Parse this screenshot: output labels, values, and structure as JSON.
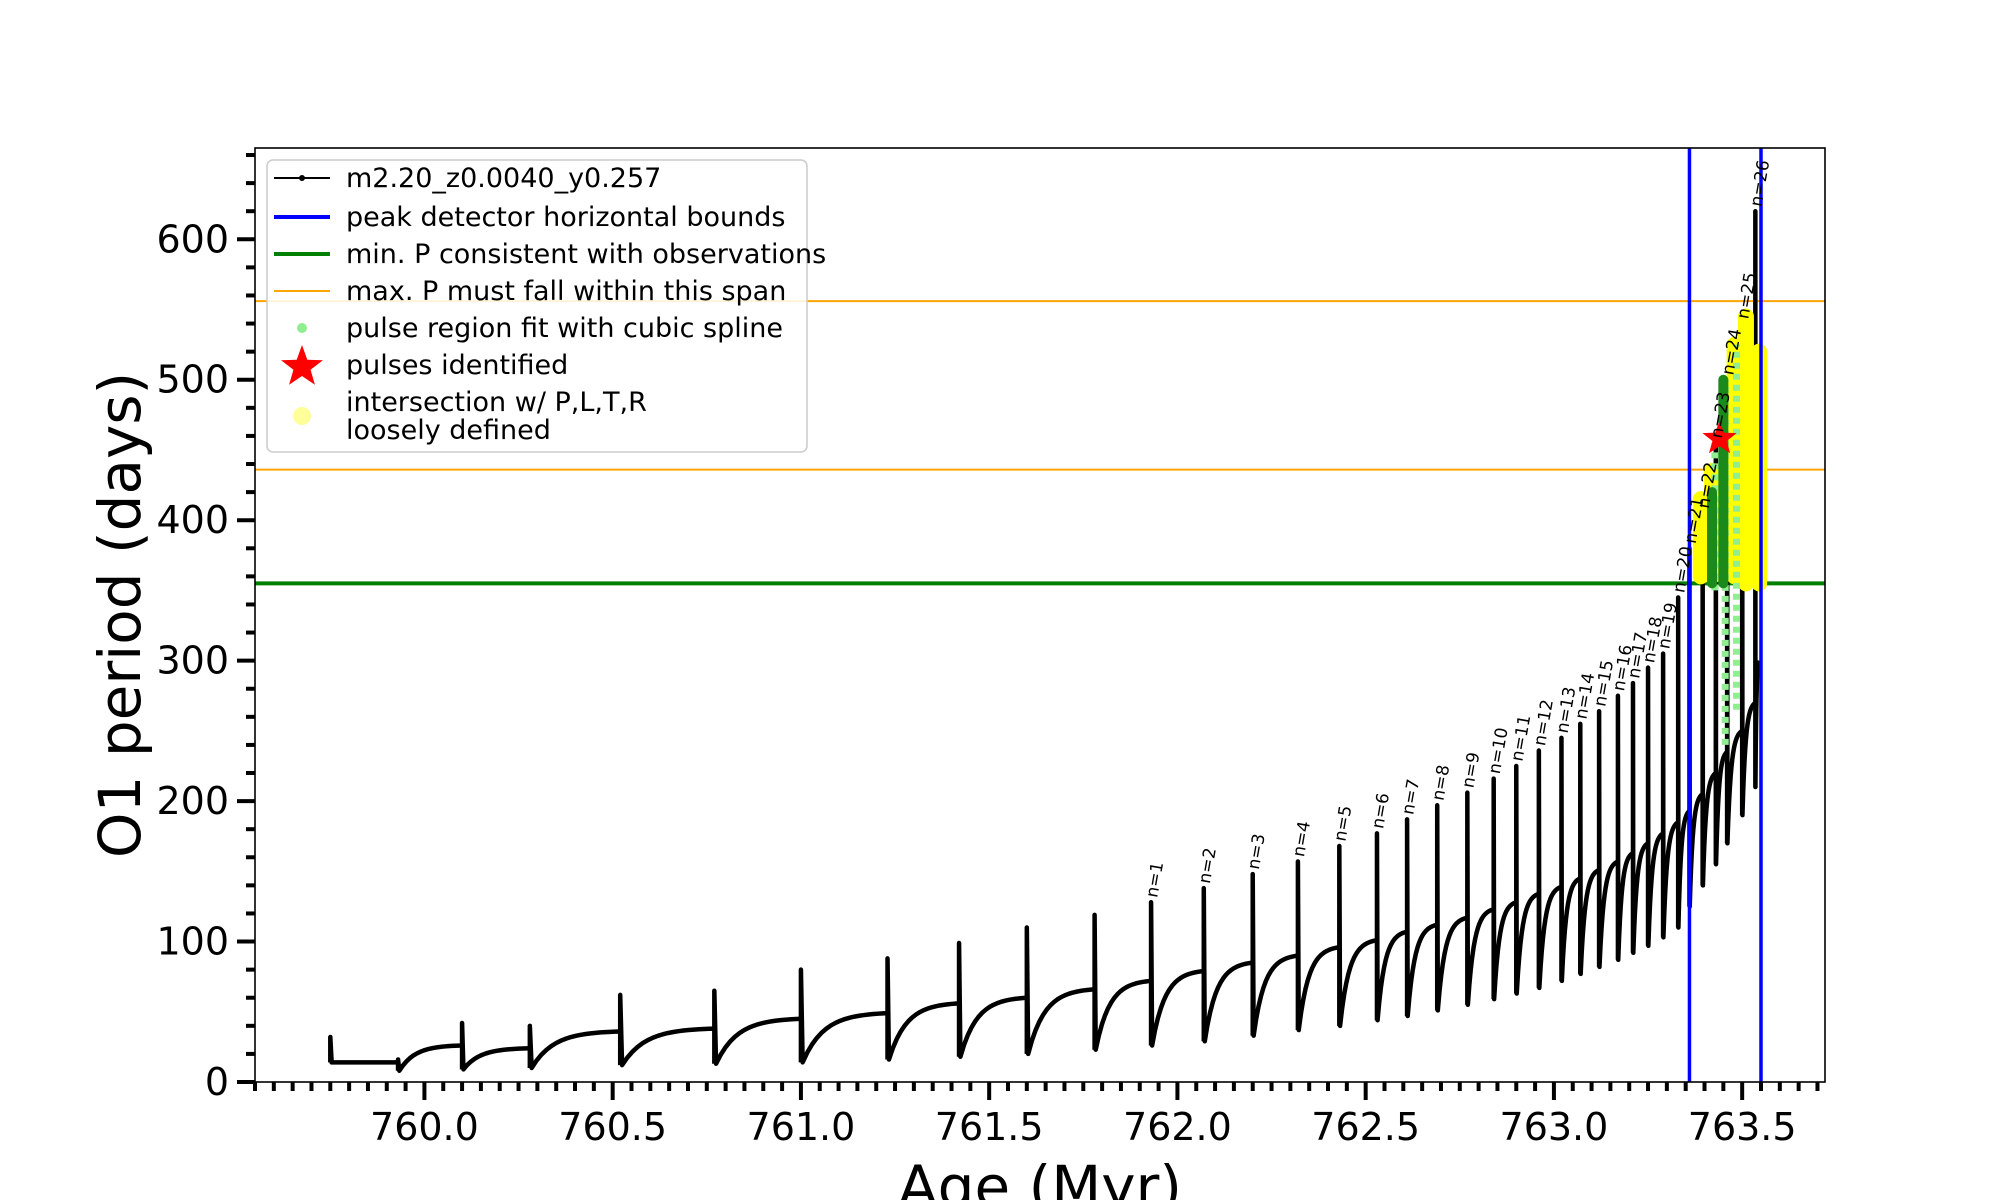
{
  "chart_data": {
    "type": "line",
    "xlabel": "Age (Myr)",
    "ylabel": "O1 period (days)",
    "xlim": [
      759.55,
      763.72
    ],
    "ylim": [
      0,
      665
    ],
    "x_ticks": [
      760.0,
      760.5,
      761.0,
      761.5,
      762.0,
      762.5,
      763.0,
      763.5
    ],
    "x_tick_labels": [
      "760.0",
      "760.5",
      "761.0",
      "761.5",
      "762.0",
      "762.5",
      "763.0",
      "763.5"
    ],
    "y_ticks": [
      0,
      100,
      200,
      300,
      400,
      500,
      600
    ],
    "y_tick_labels": [
      "0",
      "100",
      "200",
      "300",
      "400",
      "500",
      "600"
    ],
    "grid": false,
    "legend_placement": "top-left",
    "legend": [
      {
        "label": "m2.20_z0.0040_y0.257",
        "marker": "line-dot",
        "color": "#000000"
      },
      {
        "label": "peak detector horizontal bounds",
        "marker": "line",
        "color": "#0000ff"
      },
      {
        "label": "min. P consistent with observations",
        "marker": "line",
        "color": "#008000"
      },
      {
        "label": "max. P must fall within this span",
        "marker": "thin-line",
        "color": "#ffa500"
      },
      {
        "label": "pulse region fit with cubic spline",
        "marker": "dot",
        "color": "#90ee90"
      },
      {
        "label": "pulses identified",
        "marker": "star",
        "color": "#ff0000"
      },
      {
        "label": "intersection w/ P,L,T,R",
        "label_line2": "loosely defined",
        "marker": "circle",
        "color": "#ffff99"
      }
    ],
    "vertical_lines": {
      "color": "#0000ff",
      "x": [
        763.36,
        763.55
      ]
    },
    "min_period_line": {
      "color": "#008000",
      "y": 355
    },
    "max_period_span": {
      "color": "#ffa500",
      "y": [
        436,
        556
      ]
    },
    "identified_pulse": {
      "x": 763.44,
      "y": 458,
      "color": "#ff0000"
    },
    "series": [
      {
        "name": "m2.20_z0.0040_y0.257",
        "color": "#000000",
        "pulses": [
          {
            "n": "",
            "x": 759.75,
            "peak": 32,
            "start": 14,
            "end": 14
          },
          {
            "n": "",
            "x": 759.93,
            "peak": 16,
            "start": 8,
            "end": 26
          },
          {
            "n": "",
            "x": 760.1,
            "peak": 42,
            "start": 9,
            "end": 24
          },
          {
            "n": "",
            "x": 760.28,
            "peak": 40,
            "start": 10,
            "end": 36
          },
          {
            "n": "",
            "x": 760.52,
            "peak": 62,
            "start": 12,
            "end": 38
          },
          {
            "n": "",
            "x": 760.77,
            "peak": 65,
            "start": 13,
            "end": 45
          },
          {
            "n": "",
            "x": 761.0,
            "peak": 80,
            "start": 14,
            "end": 49
          },
          {
            "n": "",
            "x": 761.23,
            "peak": 88,
            "start": 16,
            "end": 56
          },
          {
            "n": "",
            "x": 761.42,
            "peak": 99,
            "start": 18,
            "end": 60
          },
          {
            "n": "",
            "x": 761.6,
            "peak": 110,
            "start": 20,
            "end": 66
          },
          {
            "n": "",
            "x": 761.78,
            "peak": 119,
            "start": 23,
            "end": 72
          },
          {
            "n": "n=1",
            "x": 761.93,
            "peak": 128,
            "start": 26,
            "end": 79
          },
          {
            "n": "n=2",
            "x": 762.07,
            "peak": 138,
            "start": 29,
            "end": 85
          },
          {
            "n": "n=3",
            "x": 762.2,
            "peak": 148,
            "start": 33,
            "end": 90
          },
          {
            "n": "n=4",
            "x": 762.32,
            "peak": 157,
            "start": 37,
            "end": 96
          },
          {
            "n": "n=5",
            "x": 762.43,
            "peak": 168,
            "start": 40,
            "end": 101
          },
          {
            "n": "n=6",
            "x": 762.53,
            "peak": 177,
            "start": 44,
            "end": 107
          },
          {
            "n": "n=7",
            "x": 762.61,
            "peak": 187,
            "start": 47,
            "end": 112
          },
          {
            "n": "n=8",
            "x": 762.69,
            "peak": 197,
            "start": 51,
            "end": 117
          },
          {
            "n": "n=9",
            "x": 762.77,
            "peak": 206,
            "start": 55,
            "end": 123
          },
          {
            "n": "n=10",
            "x": 762.84,
            "peak": 216,
            "start": 59,
            "end": 128
          },
          {
            "n": "n=11",
            "x": 762.9,
            "peak": 225,
            "start": 63,
            "end": 134
          },
          {
            "n": "n=12",
            "x": 762.96,
            "peak": 236,
            "start": 67,
            "end": 139
          },
          {
            "n": "n=13",
            "x": 763.02,
            "peak": 245,
            "start": 72,
            "end": 145
          },
          {
            "n": "n=14",
            "x": 763.07,
            "peak": 255,
            "start": 77,
            "end": 151
          },
          {
            "n": "n=15",
            "x": 763.12,
            "peak": 264,
            "start": 82,
            "end": 157
          },
          {
            "n": "n=16",
            "x": 763.17,
            "peak": 275,
            "start": 87,
            "end": 163
          },
          {
            "n": "n=17",
            "x": 763.21,
            "peak": 284,
            "start": 92,
            "end": 170
          },
          {
            "n": "n=18",
            "x": 763.25,
            "peak": 295,
            "start": 97,
            "end": 177
          },
          {
            "n": "n=19",
            "x": 763.29,
            "peak": 305,
            "start": 103,
            "end": 185
          },
          {
            "n": "n=20",
            "x": 763.33,
            "peak": 345,
            "start": 110,
            "end": 193
          },
          {
            "n": "n=21",
            "x": 763.36,
            "peak": 380,
            "start": 125,
            "end": 205
          },
          {
            "n": "n=22",
            "x": 763.395,
            "peak": 405,
            "start": 140,
            "end": 220
          },
          {
            "n": "n=23",
            "x": 763.43,
            "peak": 455,
            "start": 155,
            "end": 235
          },
          {
            "n": "n=24",
            "x": 763.46,
            "peak": 500,
            "start": 170,
            "end": 250
          },
          {
            "n": "n=25",
            "x": 763.5,
            "peak": 540,
            "start": 190,
            "end": 270
          },
          {
            "n": "n=26",
            "x": 763.535,
            "peak": 620,
            "start": 210,
            "end": 300
          }
        ]
      }
    ],
    "spline_regions": [
      {
        "x": [
          763.42,
          763.435
        ],
        "y": [
          350,
          455
        ]
      },
      {
        "x": [
          763.445,
          763.465
        ],
        "y": [
          240,
          500
        ]
      },
      {
        "x": [
          763.475,
          763.495
        ],
        "y": [
          265,
          525
        ]
      }
    ],
    "green_markers": [
      {
        "x": 763.42,
        "y": [
          355,
          420
        ]
      },
      {
        "x": 763.45,
        "y": [
          355,
          500
        ]
      }
    ],
    "yellow_regions": [
      {
        "x": 763.39,
        "y": [
          360,
          415
        ]
      },
      {
        "x": 763.42,
        "y": [
          360,
          435
        ]
      },
      {
        "x": 763.48,
        "y": [
          360,
          525
        ]
      },
      {
        "x": 763.51,
        "y": [
          355,
          545
        ]
      },
      {
        "x": 763.545,
        "y": [
          355,
          520
        ]
      }
    ]
  }
}
